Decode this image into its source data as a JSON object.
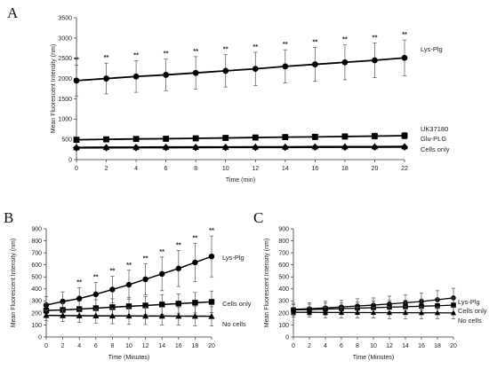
{
  "figure": {
    "panels": [
      "A",
      "B",
      "C"
    ]
  },
  "chart_data": [
    {
      "panel": "A",
      "type": "line",
      "title": "",
      "xlabel": "Time (min)",
      "ylabel": "Mean Fluorescent Intensity (nm)",
      "xlim": [
        0,
        22
      ],
      "ylim": [
        0,
        3500
      ],
      "x_ticks": [
        0,
        2,
        4,
        6,
        8,
        10,
        12,
        14,
        16,
        18,
        20,
        22
      ],
      "y_ticks": [
        0,
        500,
        1000,
        1500,
        2000,
        2500,
        3000,
        3500
      ],
      "grid": false,
      "legend": "none",
      "x": [
        0,
        2,
        4,
        6,
        8,
        10,
        12,
        14,
        16,
        18,
        20,
        22
      ],
      "series": [
        {
          "name": "Lys-Plg",
          "marker": "circle",
          "values": [
            1950,
            2000,
            2050,
            2090,
            2140,
            2190,
            2240,
            2300,
            2350,
            2400,
            2450,
            2510
          ],
          "error": [
            380,
            380,
            390,
            390,
            400,
            400,
            410,
            410,
            420,
            430,
            430,
            440
          ],
          "significance": [
            "**",
            "**",
            "**",
            "**",
            "**",
            "**",
            "**",
            "**",
            "**",
            "**",
            "**",
            "**"
          ]
        },
        {
          "name": "UK37180",
          "marker": "square",
          "values": [
            490,
            500,
            510,
            515,
            525,
            535,
            545,
            555,
            560,
            570,
            580,
            590
          ],
          "error": [
            50,
            50,
            55,
            55,
            60,
            60,
            60,
            65,
            70,
            70,
            75,
            80
          ],
          "significance": []
        },
        {
          "name": "Glu-PLG",
          "marker": "triangle",
          "values": [
            300,
            305,
            305,
            310,
            310,
            310,
            315,
            315,
            320,
            320,
            320,
            325
          ],
          "error": [
            25,
            25,
            25,
            25,
            25,
            25,
            25,
            25,
            25,
            25,
            25,
            25
          ],
          "significance": []
        },
        {
          "name": "Cells only",
          "marker": "diamond",
          "values": [
            290,
            292,
            295,
            296,
            298,
            300,
            300,
            302,
            305,
            306,
            308,
            310
          ],
          "error": [
            20,
            20,
            20,
            20,
            20,
            20,
            20,
            20,
            20,
            20,
            20,
            20
          ],
          "significance": []
        }
      ]
    },
    {
      "panel": "B",
      "type": "line",
      "title": "",
      "xlabel": "Time (Minutes)",
      "ylabel": "Mean Fluorescent Intensity (nm)",
      "xlim": [
        0,
        20
      ],
      "ylim": [
        0,
        900
      ],
      "x_ticks": [
        0,
        2,
        4,
        6,
        8,
        10,
        12,
        14,
        16,
        18,
        20
      ],
      "y_ticks": [
        0,
        100,
        200,
        300,
        400,
        500,
        600,
        700,
        800,
        900
      ],
      "grid": false,
      "legend": "none",
      "x": [
        0,
        2,
        4,
        6,
        8,
        10,
        12,
        14,
        16,
        18,
        20
      ],
      "series": [
        {
          "name": "Lys-Plg",
          "marker": "circle",
          "values": [
            265,
            295,
            320,
            355,
            395,
            435,
            480,
            525,
            570,
            620,
            670
          ],
          "error": [
            70,
            80,
            90,
            100,
            110,
            120,
            130,
            140,
            150,
            160,
            170
          ],
          "significance": [
            "",
            "",
            "**",
            "**",
            "**",
            "**",
            "**",
            "**",
            "**",
            "**",
            "**"
          ]
        },
        {
          "name": "Cells only",
          "marker": "square",
          "values": [
            220,
            225,
            232,
            240,
            248,
            255,
            262,
            270,
            278,
            285,
            292
          ],
          "error": [
            55,
            60,
            65,
            70,
            70,
            75,
            75,
            80,
            80,
            85,
            90
          ],
          "significance": []
        },
        {
          "name": "No cells",
          "marker": "triangle",
          "values": [
            180,
            178,
            177,
            176,
            175,
            175,
            174,
            174,
            173,
            173,
            172
          ],
          "error": [
            45,
            50,
            55,
            60,
            65,
            70,
            70,
            75,
            75,
            80,
            80
          ],
          "significance": []
        }
      ]
    },
    {
      "panel": "C",
      "type": "line",
      "title": "",
      "xlabel": "Time (Minutes)",
      "ylabel": "Mean Fluorescent Intensity (nm)",
      "xlim": [
        0,
        20
      ],
      "ylim": [
        0,
        900
      ],
      "x_ticks": [
        0,
        2,
        4,
        6,
        8,
        10,
        12,
        14,
        16,
        18,
        20
      ],
      "y_ticks": [
        0,
        100,
        200,
        300,
        400,
        500,
        600,
        700,
        800,
        900
      ],
      "grid": false,
      "legend": "none",
      "x": [
        0,
        2,
        4,
        6,
        8,
        10,
        12,
        14,
        16,
        18,
        20
      ],
      "series": [
        {
          "name": "Lys-Plg",
          "marker": "circle",
          "values": [
            230,
            235,
            242,
            250,
            258,
            265,
            275,
            285,
            295,
            310,
            325
          ],
          "error": [
            50,
            50,
            55,
            55,
            60,
            60,
            65,
            65,
            70,
            75,
            80
          ],
          "significance": []
        },
        {
          "name": "Cells only",
          "marker": "square",
          "values": [
            225,
            228,
            232,
            236,
            240,
            244,
            248,
            252,
            256,
            260,
            265
          ],
          "error": [
            45,
            45,
            50,
            50,
            50,
            55,
            55,
            55,
            60,
            60,
            60
          ],
          "significance": []
        },
        {
          "name": "No cells",
          "marker": "triangle",
          "values": [
            205,
            205,
            204,
            204,
            203,
            203,
            202,
            202,
            201,
            201,
            200
          ],
          "error": [
            40,
            40,
            45,
            45,
            45,
            45,
            50,
            50,
            50,
            50,
            50
          ],
          "significance": []
        }
      ]
    }
  ]
}
